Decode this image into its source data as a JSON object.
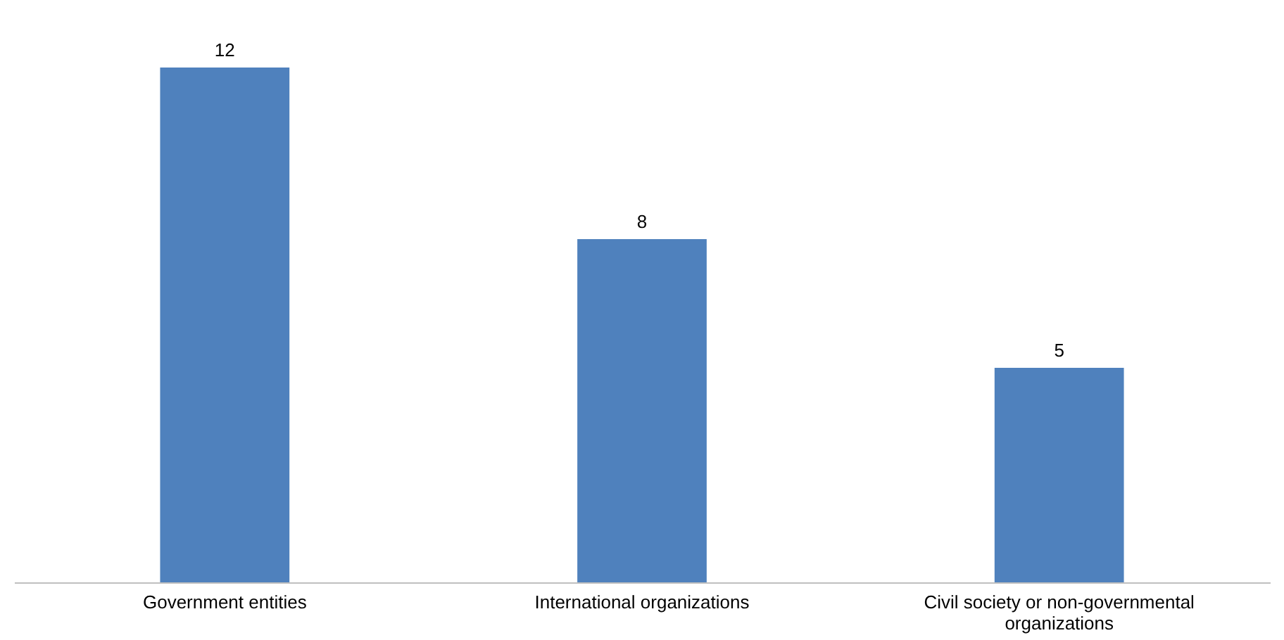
{
  "chart_data": {
    "type": "bar",
    "categories": [
      "Government entities",
      "International organizations",
      "Civil society or non-governmental organizations"
    ],
    "values": [
      12,
      8,
      5
    ],
    "color": "#4f81bd",
    "data_labels": true
  }
}
